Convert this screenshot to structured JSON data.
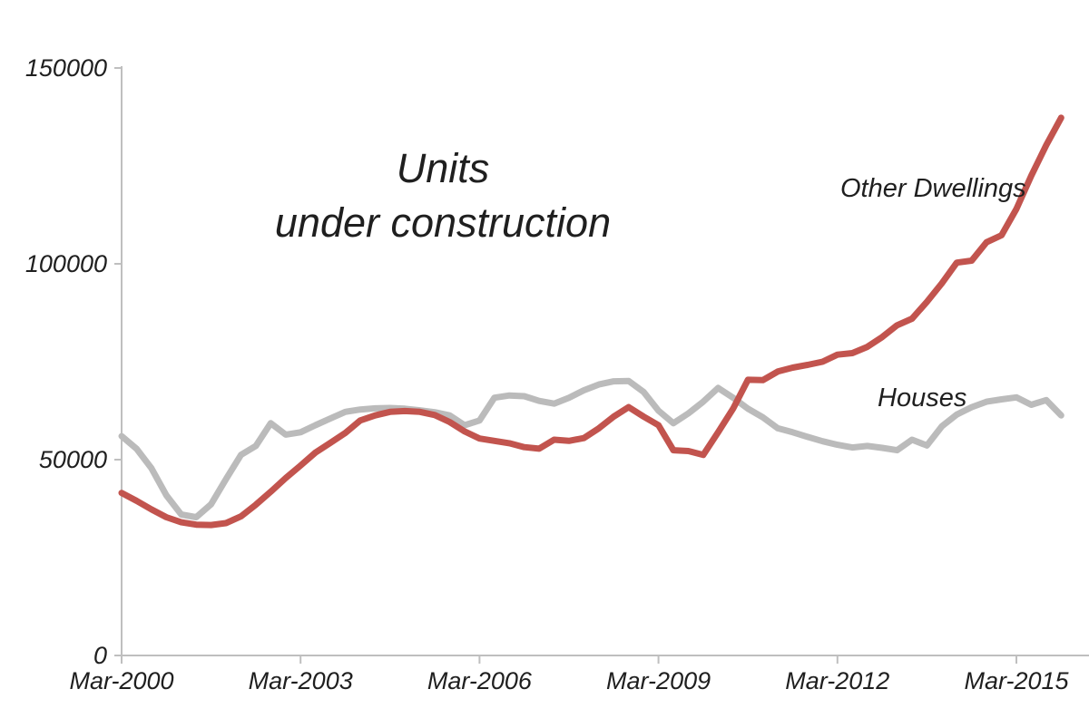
{
  "title": {
    "line1": "Units",
    "line2": "under construction"
  },
  "annotations": {
    "other_dwellings_label": "Other Dwellings",
    "houses_label": "Houses"
  },
  "colors": {
    "other_dwellings": "#C2544E",
    "houses": "#BBBBBB",
    "axis": "#BFBFBF",
    "text": "#1F1F1F",
    "background": "#FFFFFF"
  },
  "chart_data": {
    "type": "line",
    "title": "Units under construction",
    "xlabel": "",
    "ylabel": "",
    "ylim": [
      0,
      150000
    ],
    "grid": false,
    "legend_position": "inline-annotations",
    "y_tick_labels": [
      "0",
      "50000",
      "100000",
      "150000"
    ],
    "x_tick_labels": [
      "Mar-2000",
      "Mar-2003",
      "Mar-2006",
      "Mar-2009",
      "Mar-2012",
      "Mar-2015"
    ],
    "x": [
      "Mar-2000",
      "Jun-2000",
      "Sep-2000",
      "Dec-2000",
      "Mar-2001",
      "Jun-2001",
      "Sep-2001",
      "Dec-2001",
      "Mar-2002",
      "Jun-2002",
      "Sep-2002",
      "Dec-2002",
      "Mar-2003",
      "Jun-2003",
      "Sep-2003",
      "Dec-2003",
      "Mar-2004",
      "Jun-2004",
      "Sep-2004",
      "Dec-2004",
      "Mar-2005",
      "Jun-2005",
      "Sep-2005",
      "Dec-2005",
      "Mar-2006",
      "Jun-2006",
      "Sep-2006",
      "Dec-2006",
      "Mar-2007",
      "Jun-2007",
      "Sep-2007",
      "Dec-2007",
      "Mar-2008",
      "Jun-2008",
      "Sep-2008",
      "Dec-2008",
      "Mar-2009",
      "Jun-2009",
      "Sep-2009",
      "Dec-2009",
      "Mar-2010",
      "Jun-2010",
      "Sep-2010",
      "Dec-2010",
      "Mar-2011",
      "Jun-2011",
      "Sep-2011",
      "Dec-2011",
      "Mar-2012",
      "Jun-2012",
      "Sep-2012",
      "Dec-2012",
      "Mar-2013",
      "Jun-2013",
      "Sep-2013",
      "Dec-2013",
      "Mar-2014",
      "Jun-2014",
      "Sep-2014",
      "Dec-2014",
      "Mar-2015",
      "Jun-2015",
      "Sep-2015",
      "Dec-2015"
    ],
    "series": [
      {
        "name": "Houses",
        "color": "#BBBBBB",
        "values": [
          56000,
          52800,
          47800,
          40900,
          36000,
          35300,
          38600,
          45000,
          51200,
          53500,
          59300,
          56400,
          57000,
          58800,
          60500,
          62200,
          62800,
          63100,
          63200,
          63000,
          62600,
          62100,
          61300,
          58800,
          60000,
          65800,
          66400,
          66200,
          65000,
          64300,
          65800,
          67700,
          69200,
          70000,
          70100,
          67300,
          62500,
          59300,
          61800,
          64800,
          68300,
          65800,
          63000,
          60800,
          58000,
          57000,
          55800,
          54700,
          53800,
          53100,
          53500,
          53000,
          52400,
          55100,
          53600,
          58500,
          61500,
          63400,
          64800,
          65400,
          65900,
          64000,
          65200,
          61300
        ]
      },
      {
        "name": "Other Dwellings",
        "color": "#C2544E",
        "values": [
          41500,
          39500,
          37300,
          35300,
          34000,
          33400,
          33300,
          33800,
          35500,
          38500,
          41800,
          45300,
          48500,
          51800,
          54300,
          56800,
          60000,
          61300,
          62200,
          62400,
          62200,
          61400,
          59600,
          57200,
          55400,
          54800,
          54200,
          53200,
          52800,
          55100,
          54800,
          55500,
          58000,
          61000,
          63400,
          61000,
          58800,
          52400,
          52200,
          51200,
          57000,
          63000,
          70400,
          70300,
          72500,
          73500,
          74200,
          75000,
          76800,
          77200,
          78800,
          81300,
          84300,
          86000,
          90300,
          95000,
          100300,
          100800,
          105500,
          107300,
          114000,
          122500,
          130300,
          137300
        ]
      }
    ]
  }
}
